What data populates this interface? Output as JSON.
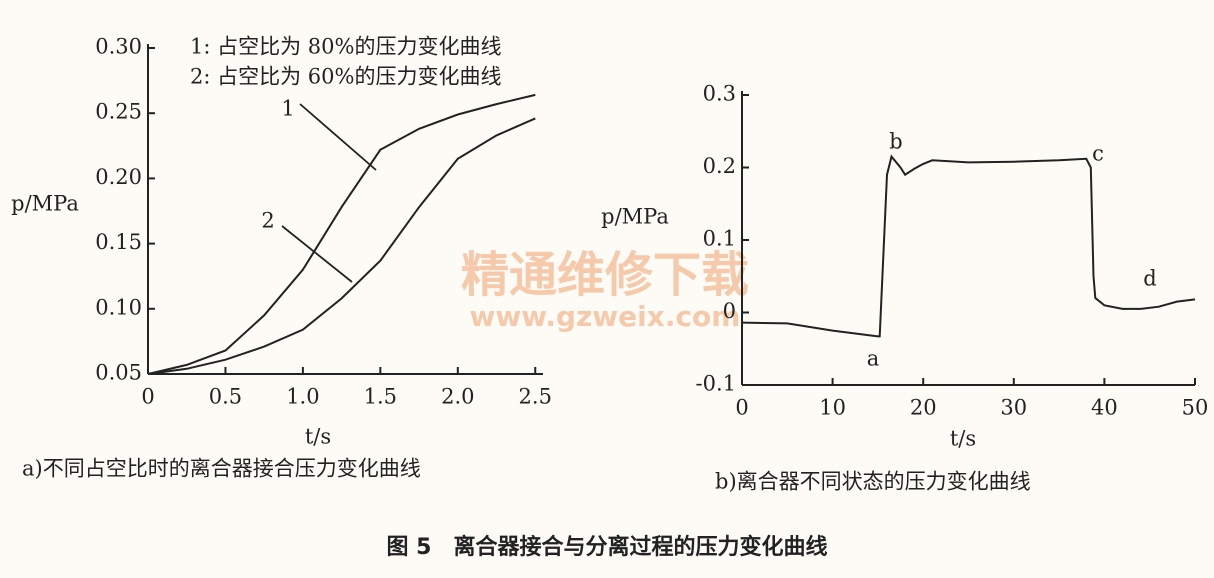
{
  "chart_data": [
    {
      "type": "line",
      "subtitle": "a)不同占空比时的离合器接合压力变化曲线",
      "xlabel": "t/s",
      "ylabel": "p/MPa",
      "x": [
        0,
        0.25,
        0.5,
        0.75,
        1.0,
        1.25,
        1.5,
        1.75,
        2.0,
        2.25,
        2.5
      ],
      "series": [
        {
          "name": "1: 占空比为 80%的压力变化曲线",
          "color": "#222222",
          "values": [
            0.05,
            0.057,
            0.068,
            0.095,
            0.13,
            0.178,
            0.222,
            0.238,
            0.249,
            0.257,
            0.264
          ]
        },
        {
          "name": "2: 占空比为 60%的压力变化曲线",
          "color": "#222222",
          "values": [
            0.05,
            0.054,
            0.061,
            0.071,
            0.084,
            0.108,
            0.137,
            0.178,
            0.215,
            0.233,
            0.246
          ]
        }
      ],
      "annotations": [
        "1",
        "2"
      ],
      "xlim": [
        0,
        2.55
      ],
      "ylim": [
        0.05,
        0.3
      ],
      "xticks": [
        0,
        0.5,
        {
          "value": 1,
          "label": "1.0"
        },
        1.5,
        {
          "value": 2,
          "label": "2.0"
        },
        2.5
      ],
      "yticks": [
        0.05,
        {
          "value": 0.1,
          "label": "0.10"
        },
        0.15,
        {
          "value": 0.2,
          "label": "0.20"
        },
        0.25,
        {
          "value": 0.3,
          "label": "0.30"
        }
      ]
    },
    {
      "type": "line",
      "subtitle": "b)离合器不同状态的压力变化曲线",
      "xlabel": "t/s",
      "ylabel": "p/MPa",
      "x": [
        0,
        5,
        10,
        15,
        15.2,
        15.5,
        16,
        16.5,
        17.5,
        18,
        19,
        20,
        21,
        25,
        30,
        35,
        38,
        38.5,
        38.8,
        39,
        40,
        42,
        44,
        46,
        48,
        50
      ],
      "series": [
        {
          "name": "p",
          "color": "#222222",
          "values": [
            -0.014,
            -0.015,
            -0.025,
            -0.033,
            -0.033,
            0.05,
            0.19,
            0.215,
            0.2,
            0.19,
            0.198,
            0.205,
            0.21,
            0.207,
            0.208,
            0.21,
            0.212,
            0.2,
            0.05,
            0.02,
            0.01,
            0.005,
            0.005,
            0.008,
            0.015,
            0.018
          ]
        }
      ],
      "annotations": [
        "a",
        "b",
        "c",
        "d"
      ],
      "xlim": [
        0,
        50
      ],
      "ylim": [
        -0.1,
        0.3
      ],
      "xticks": [
        0,
        10,
        20,
        30,
        40,
        50
      ],
      "yticks": [
        -0.1,
        0,
        0.1,
        0.2,
        0.3
      ]
    }
  ],
  "watermark": {
    "title": "精通维修下载",
    "url": "www.gzweix.com"
  },
  "figure_caption": "图 5　离合器接合与分离过程的压力变化曲线"
}
